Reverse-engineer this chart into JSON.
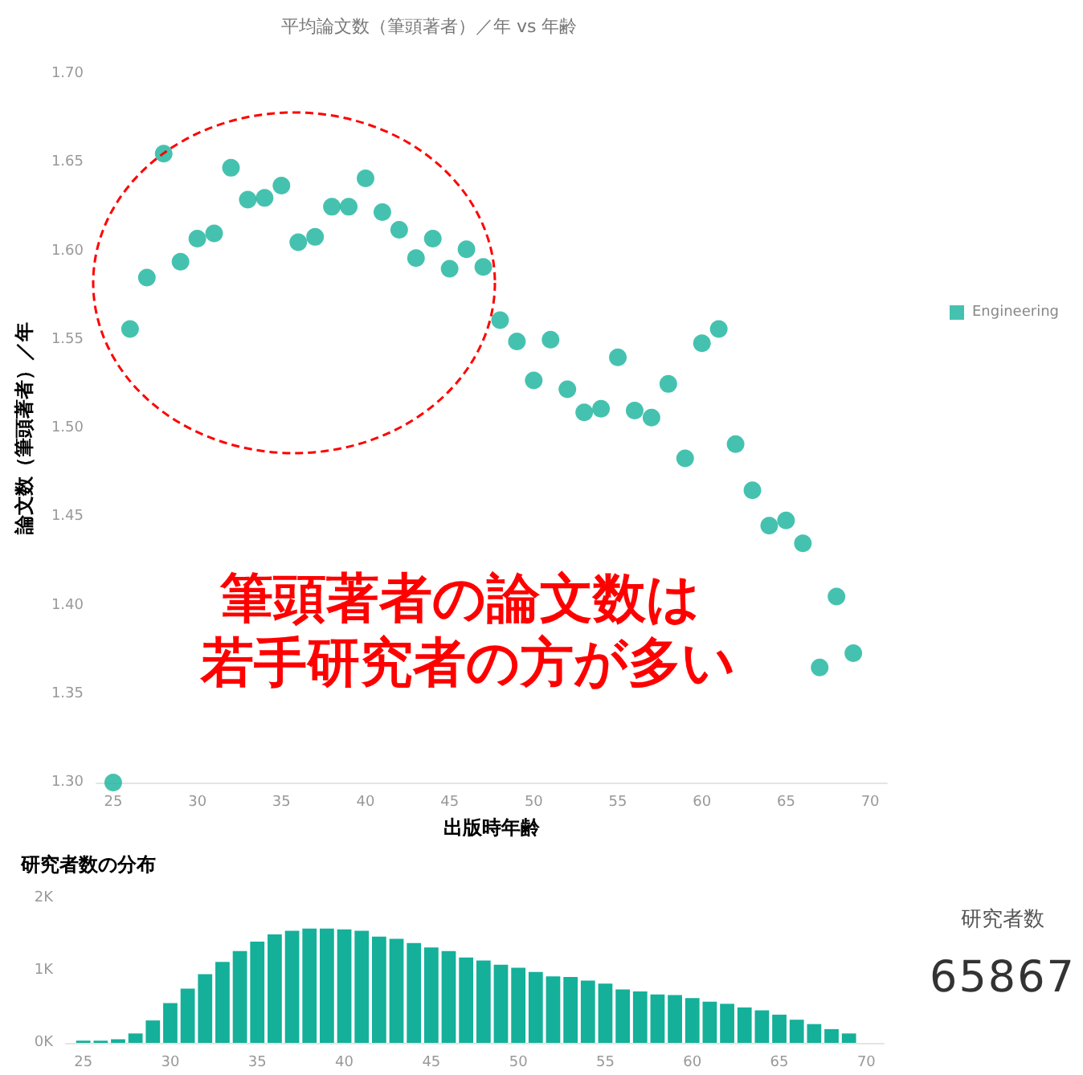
{
  "chart_data": [
    {
      "type": "scatter",
      "title": "平均論文数（筆頭著者）／年 vs 年齢",
      "xlabel": "出版時年齢",
      "ylabel": "論文数（筆頭著者）／年",
      "marker": "circle",
      "legend": "right",
      "series": [
        {
          "name": "Engineering",
          "color": "#17b39b",
          "x": [
            25,
            26,
            27,
            28,
            29,
            30,
            31,
            32,
            33,
            34,
            35,
            36,
            37,
            38,
            39,
            40,
            41,
            42,
            43,
            44,
            45,
            46,
            47,
            48,
            49,
            50,
            51,
            52,
            53,
            54,
            55,
            56,
            57,
            58,
            59,
            60,
            61,
            62,
            63,
            64,
            65,
            66,
            67,
            68,
            69
          ],
          "values": [
            1.3,
            1.556,
            1.585,
            1.655,
            1.594,
            1.607,
            1.61,
            1.647,
            1.629,
            1.63,
            1.637,
            1.605,
            1.608,
            1.625,
            1.625,
            1.641,
            1.622,
            1.612,
            1.596,
            1.607,
            1.59,
            1.601,
            1.591,
            1.561,
            1.549,
            1.527,
            1.55,
            1.522,
            1.509,
            1.511,
            1.54,
            1.51,
            1.506,
            1.525,
            1.483,
            1.548,
            1.556,
            1.491,
            1.465,
            1.445,
            1.448,
            1.435,
            1.365,
            1.405,
            1.373
          ]
        }
      ],
      "xlim": [
        24,
        71
      ],
      "xticks": [
        25,
        30,
        35,
        40,
        45,
        50,
        55,
        60,
        65,
        70
      ],
      "ylim": [
        1.3,
        1.7
      ],
      "yticks": [
        {
          "value": 1.3,
          "label": "1.30"
        },
        {
          "value": 1.35,
          "label": "1.35"
        },
        {
          "value": 1.4,
          "label": "1.40"
        },
        {
          "value": 1.45,
          "label": "1.45"
        },
        {
          "value": 1.5,
          "label": "1.50"
        },
        {
          "value": 1.55,
          "label": "1.55"
        },
        {
          "value": 1.6,
          "label": "1.60"
        },
        {
          "value": 1.65,
          "label": "1.65"
        },
        {
          "value": 1.7,
          "label": "1.70"
        }
      ],
      "annotations": [
        "筆頭著者の論文数は",
        "若手研究者の方が多い"
      ]
    },
    {
      "type": "bar",
      "title": "研究者数の分布",
      "color": "#14b09a",
      "x": [
        25,
        26,
        27,
        28,
        29,
        30,
        31,
        32,
        33,
        34,
        35,
        36,
        37,
        38,
        39,
        40,
        41,
        42,
        43,
        44,
        45,
        46,
        47,
        48,
        49,
        50,
        51,
        52,
        53,
        54,
        55,
        56,
        57,
        58,
        59,
        60,
        61,
        62,
        63,
        64,
        65,
        66,
        67,
        68,
        69
      ],
      "values": [
        0.03,
        0.03,
        0.05,
        0.13,
        0.31,
        0.55,
        0.75,
        0.95,
        1.12,
        1.27,
        1.4,
        1.5,
        1.55,
        1.58,
        1.58,
        1.57,
        1.55,
        1.47,
        1.44,
        1.38,
        1.32,
        1.27,
        1.18,
        1.14,
        1.08,
        1.04,
        0.98,
        0.92,
        0.91,
        0.86,
        0.82,
        0.74,
        0.71,
        0.67,
        0.66,
        0.62,
        0.57,
        0.54,
        0.49,
        0.45,
        0.39,
        0.32,
        0.26,
        0.19,
        0.13
      ],
      "xlim": [
        24,
        71
      ],
      "xticks": [
        25,
        30,
        35,
        40,
        45,
        50,
        55,
        60,
        65,
        70
      ],
      "ylim": [
        0,
        2
      ],
      "yticks": [
        {
          "value": 0,
          "label": "0K"
        },
        {
          "value": 1,
          "label": "1K"
        },
        {
          "value": 2,
          "label": "2K"
        }
      ]
    },
    {
      "type": "other",
      "title": "研究者数",
      "annotations": [
        "65867"
      ]
    }
  ]
}
